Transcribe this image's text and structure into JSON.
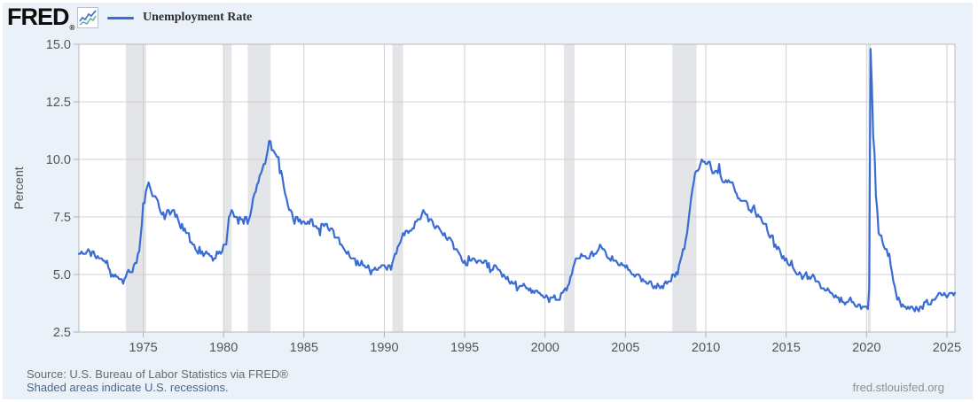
{
  "header": {
    "logo_text": "FRED",
    "logo_reg": "®"
  },
  "legend": {
    "label": "Unemployment Rate"
  },
  "footer": {
    "source": "Source: U.S. Bureau of Labor Statistics via FRED®",
    "recession_note": "Shaded areas indicate U.S. recessions.",
    "site": "fred.stlouisfed.org"
  },
  "colors": {
    "panel_bg": "#eaf1f9",
    "plot_bg": "#ffffff",
    "plot_border": "#b9b9b9",
    "gridline": "#d0d0d0",
    "tick": "#b3b3b3",
    "axis_text": "#555555",
    "line": "#3a6cd3",
    "recession_band": "#e3e5e8",
    "logo_icon_blue": "#4a79c6",
    "logo_icon_teal": "#55a8a0"
  },
  "chart_data": {
    "type": "line",
    "title": "Unemployment Rate",
    "ylabel": "Percent",
    "xlabel": "",
    "grid": true,
    "legend_position": "top-left",
    "ylim": [
      2.5,
      15.0
    ],
    "xlim": [
      1971.0,
      2025.5
    ],
    "y_tick_labels": [
      "2.5",
      "5.0",
      "7.5",
      "10.0",
      "12.5",
      "15.0"
    ],
    "x_ticks": [
      1975,
      1980,
      1985,
      1990,
      1995,
      2000,
      2005,
      2010,
      2015,
      2020,
      2025
    ],
    "frequency": "monthly",
    "unit": "percent",
    "recessions": [
      [
        1973.92,
        1975.17
      ],
      [
        1980.0,
        1980.5
      ],
      [
        1981.5,
        1982.92
      ],
      [
        1990.5,
        1991.17
      ],
      [
        2001.17,
        2001.83
      ],
      [
        2007.92,
        2009.42
      ],
      [
        2020.08,
        2020.26
      ]
    ],
    "monthly": {
      "1971": [
        5.9,
        5.9,
        6.0,
        5.9,
        5.9,
        5.9,
        6.0,
        6.1,
        6.0,
        5.8,
        6.0,
        6.0
      ],
      "1972": [
        5.8,
        5.7,
        5.8,
        5.7,
        5.7,
        5.7,
        5.6,
        5.6,
        5.5,
        5.6,
        5.3,
        5.2
      ],
      "1973": [
        4.9,
        5.0,
        4.9,
        5.0,
        4.9,
        4.9,
        4.8,
        4.8,
        4.8,
        4.6,
        4.8,
        4.9
      ],
      "1974": [
        5.1,
        5.2,
        5.1,
        5.1,
        5.1,
        5.4,
        5.5,
        5.5,
        5.9,
        6.0,
        6.6,
        7.2
      ],
      "1975": [
        8.1,
        8.1,
        8.6,
        8.8,
        9.0,
        8.8,
        8.6,
        8.4,
        8.4,
        8.4,
        8.3,
        8.2
      ],
      "1976": [
        7.9,
        7.7,
        7.6,
        7.7,
        7.4,
        7.6,
        7.8,
        7.8,
        7.6,
        7.7,
        7.8,
        7.8
      ],
      "1977": [
        7.5,
        7.6,
        7.4,
        7.2,
        7.0,
        7.2,
        6.9,
        7.0,
        6.8,
        6.8,
        6.8,
        6.4
      ],
      "1978": [
        6.4,
        6.3,
        6.3,
        6.1,
        6.0,
        5.9,
        6.2,
        5.9,
        6.0,
        5.8,
        5.9,
        6.0
      ],
      "1979": [
        5.9,
        5.9,
        5.8,
        5.8,
        5.6,
        5.7,
        5.7,
        6.0,
        5.9,
        6.0,
        5.9,
        6.0
      ],
      "1980": [
        6.3,
        6.3,
        6.3,
        6.9,
        7.5,
        7.6,
        7.8,
        7.7,
        7.5,
        7.5,
        7.5,
        7.2
      ],
      "1981": [
        7.5,
        7.4,
        7.4,
        7.2,
        7.5,
        7.5,
        7.2,
        7.4,
        7.6,
        7.9,
        8.3,
        8.5
      ],
      "1982": [
        8.6,
        8.9,
        9.0,
        9.3,
        9.4,
        9.6,
        9.8,
        9.8,
        10.1,
        10.4,
        10.8,
        10.8
      ],
      "1983": [
        10.4,
        10.4,
        10.3,
        10.2,
        10.1,
        10.1,
        9.4,
        9.5,
        9.2,
        8.8,
        8.5,
        8.3
      ],
      "1984": [
        8.0,
        7.8,
        7.8,
        7.7,
        7.4,
        7.2,
        7.5,
        7.5,
        7.3,
        7.4,
        7.2,
        7.3
      ],
      "1985": [
        7.3,
        7.2,
        7.2,
        7.3,
        7.2,
        7.4,
        7.4,
        7.1,
        7.1,
        7.1,
        7.0,
        7.0
      ],
      "1986": [
        6.7,
        7.2,
        7.2,
        7.1,
        7.2,
        7.2,
        7.0,
        6.9,
        7.0,
        7.0,
        6.9,
        6.6
      ],
      "1987": [
        6.6,
        6.6,
        6.6,
        6.3,
        6.3,
        6.2,
        6.1,
        6.0,
        5.9,
        6.0,
        5.8,
        5.7
      ],
      "1988": [
        5.7,
        5.7,
        5.7,
        5.4,
        5.6,
        5.4,
        5.4,
        5.6,
        5.4,
        5.4,
        5.3,
        5.3
      ],
      "1989": [
        5.4,
        5.2,
        5.0,
        5.2,
        5.2,
        5.3,
        5.2,
        5.2,
        5.3,
        5.3,
        5.4,
        5.4
      ],
      "1990": [
        5.4,
        5.3,
        5.2,
        5.4,
        5.4,
        5.2,
        5.5,
        5.7,
        5.9,
        5.9,
        6.2,
        6.3
      ],
      "1991": [
        6.4,
        6.6,
        6.8,
        6.7,
        6.9,
        6.9,
        6.8,
        6.9,
        6.9,
        7.0,
        7.0,
        7.3
      ],
      "1992": [
        7.3,
        7.4,
        7.4,
        7.4,
        7.6,
        7.8,
        7.7,
        7.6,
        7.6,
        7.3,
        7.4,
        7.4
      ],
      "1993": [
        7.3,
        7.1,
        7.0,
        7.1,
        7.1,
        7.0,
        6.9,
        6.8,
        6.7,
        6.8,
        6.6,
        6.5
      ],
      "1994": [
        6.6,
        6.6,
        6.5,
        6.4,
        6.1,
        6.1,
        6.1,
        6.0,
        5.9,
        5.8,
        5.6,
        5.5
      ],
      "1995": [
        5.6,
        5.4,
        5.4,
        5.8,
        5.6,
        5.6,
        5.7,
        5.7,
        5.6,
        5.5,
        5.6,
        5.6
      ],
      "1996": [
        5.6,
        5.5,
        5.5,
        5.6,
        5.6,
        5.3,
        5.5,
        5.1,
        5.2,
        5.2,
        5.4,
        5.4
      ],
      "1997": [
        5.3,
        5.2,
        5.2,
        5.1,
        4.9,
        5.0,
        4.9,
        4.8,
        4.9,
        4.7,
        4.6,
        4.7
      ],
      "1998": [
        4.6,
        4.6,
        4.7,
        4.3,
        4.4,
        4.5,
        4.5,
        4.5,
        4.6,
        4.5,
        4.4,
        4.4
      ],
      "1999": [
        4.3,
        4.4,
        4.2,
        4.3,
        4.2,
        4.3,
        4.3,
        4.2,
        4.2,
        4.1,
        4.1,
        4.0
      ],
      "2000": [
        4.0,
        4.1,
        4.0,
        3.8,
        4.0,
        4.0,
        4.0,
        4.1,
        3.9,
        3.9,
        3.9,
        3.9
      ],
      "2001": [
        4.2,
        4.2,
        4.3,
        4.4,
        4.3,
        4.5,
        4.6,
        4.9,
        5.0,
        5.3,
        5.5,
        5.7
      ],
      "2002": [
        5.7,
        5.7,
        5.7,
        5.9,
        5.8,
        5.8,
        5.8,
        5.7,
        5.7,
        5.7,
        5.9,
        6.0
      ],
      "2003": [
        5.8,
        5.9,
        5.9,
        6.0,
        6.1,
        6.3,
        6.2,
        6.1,
        6.1,
        6.0,
        5.8,
        5.7
      ],
      "2004": [
        5.7,
        5.6,
        5.8,
        5.6,
        5.6,
        5.6,
        5.5,
        5.4,
        5.4,
        5.5,
        5.4,
        5.4
      ],
      "2005": [
        5.3,
        5.4,
        5.2,
        5.2,
        5.1,
        5.0,
        5.0,
        4.9,
        5.0,
        5.0,
        5.0,
        4.9
      ],
      "2006": [
        4.7,
        4.8,
        4.7,
        4.7,
        4.6,
        4.6,
        4.7,
        4.7,
        4.5,
        4.4,
        4.5,
        4.4
      ],
      "2007": [
        4.6,
        4.5,
        4.4,
        4.5,
        4.4,
        4.6,
        4.7,
        4.6,
        4.7,
        4.7,
        4.7,
        5.0
      ],
      "2008": [
        5.0,
        4.9,
        5.1,
        5.0,
        5.4,
        5.6,
        5.8,
        6.1,
        6.1,
        6.5,
        6.8,
        7.3
      ],
      "2009": [
        7.8,
        8.3,
        8.7,
        9.0,
        9.4,
        9.5,
        9.5,
        9.6,
        9.8,
        10.0,
        9.9,
        9.9
      ],
      "2010": [
        9.8,
        9.8,
        9.9,
        9.9,
        9.6,
        9.4,
        9.4,
        9.5,
        9.5,
        9.4,
        9.8,
        9.3
      ],
      "2011": [
        9.1,
        9.0,
        9.0,
        9.1,
        9.0,
        9.1,
        9.0,
        9.0,
        9.0,
        8.8,
        8.6,
        8.5
      ],
      "2012": [
        8.3,
        8.3,
        8.2,
        8.2,
        8.2,
        8.2,
        8.2,
        8.1,
        7.8,
        7.8,
        7.7,
        7.9
      ],
      "2013": [
        8.0,
        7.7,
        7.5,
        7.6,
        7.5,
        7.5,
        7.3,
        7.2,
        7.2,
        7.2,
        6.9,
        6.7
      ],
      "2014": [
        6.6,
        6.7,
        6.7,
        6.2,
        6.3,
        6.1,
        6.2,
        6.1,
        5.9,
        5.7,
        5.8,
        5.6
      ],
      "2015": [
        5.7,
        5.5,
        5.4,
        5.4,
        5.6,
        5.3,
        5.2,
        5.1,
        5.0,
        5.0,
        5.1,
        5.0
      ],
      "2016": [
        4.8,
        4.9,
        5.0,
        5.1,
        4.8,
        4.9,
        4.8,
        4.9,
        5.0,
        4.9,
        4.7,
        4.7
      ],
      "2017": [
        4.7,
        4.6,
        4.4,
        4.4,
        4.4,
        4.3,
        4.3,
        4.4,
        4.3,
        4.2,
        4.2,
        4.1
      ],
      "2018": [
        4.0,
        4.1,
        4.0,
        4.0,
        3.8,
        4.0,
        3.8,
        3.8,
        3.7,
        3.8,
        3.8,
        3.9
      ],
      "2019": [
        4.0,
        3.8,
        3.8,
        3.7,
        3.6,
        3.6,
        3.7,
        3.7,
        3.5,
        3.6,
        3.6,
        3.6
      ],
      "2020": [
        3.6,
        3.5,
        4.4,
        14.8,
        13.2,
        11.0,
        10.2,
        8.4,
        7.8,
        6.8,
        6.7,
        6.7
      ],
      "2021": [
        6.4,
        6.2,
        6.1,
        6.1,
        5.8,
        5.9,
        5.4,
        5.1,
        4.7,
        4.5,
        4.2,
        3.9
      ],
      "2022": [
        4.0,
        3.8,
        3.6,
        3.7,
        3.6,
        3.6,
        3.5,
        3.6,
        3.5,
        3.6,
        3.6,
        3.5
      ],
      "2023": [
        3.4,
        3.6,
        3.5,
        3.4,
        3.6,
        3.6,
        3.5,
        3.8,
        3.8,
        3.9,
        3.7,
        3.7
      ],
      "2024": [
        3.7,
        3.9,
        3.9,
        3.9,
        4.0,
        4.1,
        4.2,
        4.2,
        4.1,
        4.1,
        4.2,
        4.1
      ],
      "2025": [
        4.0,
        4.1,
        4.2,
        4.2,
        4.2,
        4.1,
        4.2
      ]
    }
  }
}
